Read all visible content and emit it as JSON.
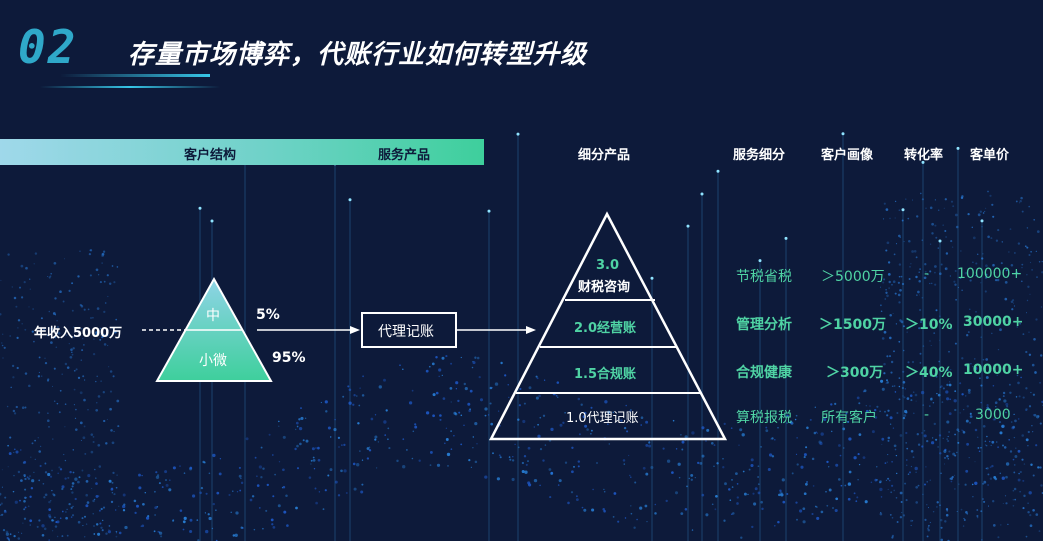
{
  "title": {
    "number": "02",
    "text": "存量市场博弈，代账行业如何转型升级"
  },
  "headers": {
    "customer_structure": "客户结构",
    "service_product": "服务产品",
    "segment_product": "细分产品",
    "service_detail": "服务细分",
    "customer_profile": "客户画像",
    "conversion_rate": "转化率",
    "unit_price": "客单价"
  },
  "left_triangle": {
    "top_label": "中",
    "top_pct": "5%",
    "bottom_label": "小微",
    "bottom_pct": "95%",
    "income_label": "年收入5000万"
  },
  "service_box": "代理记账",
  "pyramid": {
    "levels": [
      {
        "label_line1": "3.0",
        "label_line2": "财税咨询"
      },
      {
        "label": "2.0经营账"
      },
      {
        "label": "1.5合规账"
      },
      {
        "label": "1.0代理记账"
      }
    ]
  },
  "table": {
    "rows": [
      {
        "detail": "节税省税",
        "profile": "＞5000万",
        "rate": "-",
        "price": "100000+"
      },
      {
        "detail": "管理分析",
        "profile": "＞1500万",
        "rate": "＞10%",
        "price": "30000+"
      },
      {
        "detail": "合规健康",
        "profile": "＞300万",
        "rate": "＞40%",
        "price": "10000+"
      },
      {
        "detail": "算税报税",
        "profile": "所有客户",
        "rate": "-",
        "price": "3000"
      }
    ]
  },
  "colors": {
    "background": "#0d1a3a",
    "accent_green": "#4fd3a4",
    "accent_cyan": "#37c7e8"
  }
}
